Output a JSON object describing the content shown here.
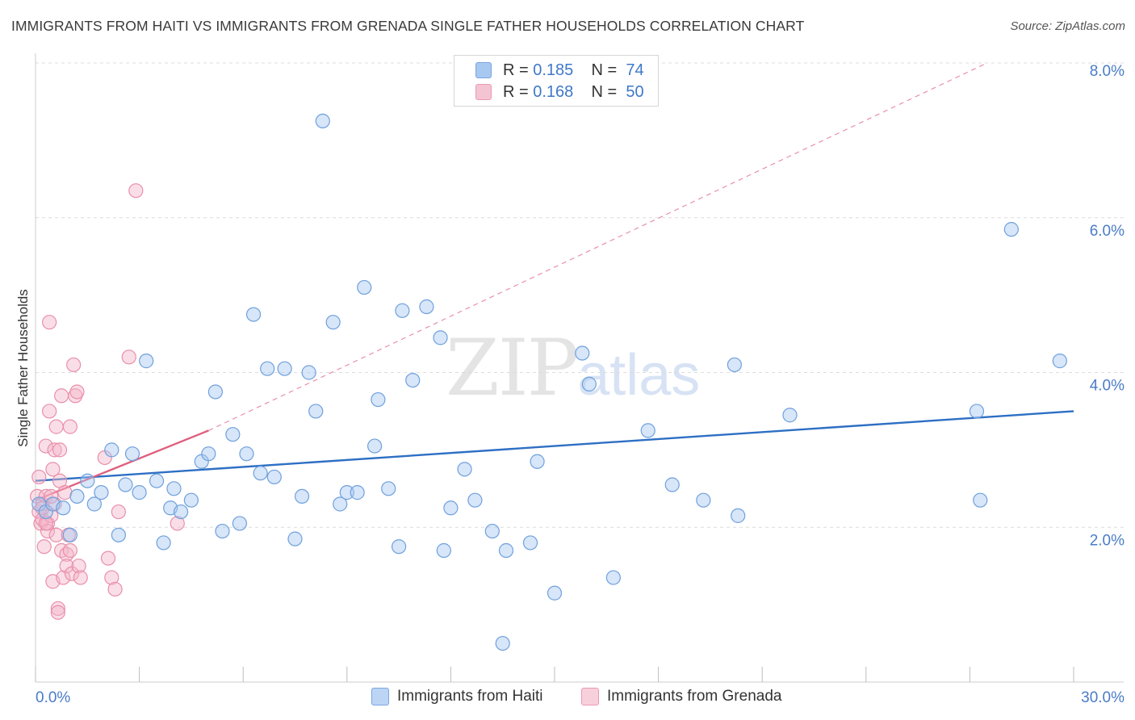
{
  "title": "IMMIGRANTS FROM HAITI VS IMMIGRANTS FROM GRENADA SINGLE FATHER HOUSEHOLDS CORRELATION CHART",
  "source": "Source: ZipAtlas.com",
  "watermark": {
    "zip": "ZIP",
    "atlas": "atlas"
  },
  "legend_top": {
    "rows": [
      {
        "r_label": "R =",
        "r_value": "0.185",
        "n_label": "N =",
        "n_value": "74",
        "color": "#a7c8f0"
      },
      {
        "r_label": "R =",
        "r_value": "0.168",
        "n_label": "N =",
        "n_value": "50",
        "color": "#f5b6c9"
      }
    ]
  },
  "legend_bottom": [
    {
      "label": "Immigrants from Haiti",
      "color": "#a7c8f0"
    },
    {
      "label": "Immigrants from Grenada",
      "color": "#f5b6c9"
    }
  ],
  "chart_data": {
    "type": "scatter",
    "title": "IMMIGRANTS FROM HAITI VS IMMIGRANTS FROM GRENADA SINGLE FATHER HOUSEHOLDS CORRELATION CHART",
    "xlabel": "",
    "ylabel": "Single Father Households",
    "xlim": [
      0,
      30
    ],
    "ylim": [
      0,
      8
    ],
    "x_tick_labels": [
      "0.0%",
      "30.0%"
    ],
    "y_ticks": [
      2,
      4,
      6,
      8
    ],
    "y_tick_labels": [
      "2.0%",
      "4.0%",
      "6.0%",
      "8.0%"
    ],
    "series": [
      {
        "name": "Immigrants from Haiti",
        "color": "#6fa0dd",
        "fill": "#a7c8f0",
        "trend": {
          "x": [
            0,
            30
          ],
          "y": [
            2.6,
            3.5
          ],
          "color": "#2d6fc4"
        },
        "points": [
          [
            0.1,
            2.3
          ],
          [
            0.3,
            2.2
          ],
          [
            0.5,
            2.3
          ],
          [
            0.8,
            2.25
          ],
          [
            1.0,
            1.9
          ],
          [
            1.2,
            2.4
          ],
          [
            1.5,
            2.6
          ],
          [
            1.7,
            2.3
          ],
          [
            1.9,
            2.45
          ],
          [
            2.2,
            3.0
          ],
          [
            2.4,
            1.9
          ],
          [
            2.6,
            2.55
          ],
          [
            2.8,
            2.95
          ],
          [
            3.0,
            2.45
          ],
          [
            3.2,
            4.15
          ],
          [
            3.5,
            2.6
          ],
          [
            3.7,
            1.8
          ],
          [
            3.9,
            2.25
          ],
          [
            4.0,
            2.5
          ],
          [
            4.2,
            2.2
          ],
          [
            4.5,
            2.35
          ],
          [
            4.8,
            2.85
          ],
          [
            5.0,
            2.95
          ],
          [
            5.2,
            3.75
          ],
          [
            5.4,
            1.95
          ],
          [
            5.7,
            3.2
          ],
          [
            5.9,
            2.05
          ],
          [
            6.1,
            2.95
          ],
          [
            6.3,
            4.75
          ],
          [
            6.5,
            2.7
          ],
          [
            6.7,
            4.05
          ],
          [
            6.9,
            2.65
          ],
          [
            7.2,
            4.05
          ],
          [
            7.5,
            1.85
          ],
          [
            7.7,
            2.4
          ],
          [
            7.9,
            4.0
          ],
          [
            8.1,
            3.5
          ],
          [
            8.3,
            7.25
          ],
          [
            8.6,
            4.65
          ],
          [
            8.8,
            2.3
          ],
          [
            9.0,
            2.45
          ],
          [
            9.3,
            2.45
          ],
          [
            9.5,
            5.1
          ],
          [
            9.8,
            3.05
          ],
          [
            9.9,
            3.65
          ],
          [
            10.2,
            2.5
          ],
          [
            10.5,
            1.75
          ],
          [
            10.6,
            4.8
          ],
          [
            10.9,
            3.9
          ],
          [
            11.3,
            4.85
          ],
          [
            11.7,
            4.45
          ],
          [
            11.8,
            1.7
          ],
          [
            12.0,
            2.25
          ],
          [
            12.4,
            2.75
          ],
          [
            12.7,
            2.35
          ],
          [
            13.2,
            1.95
          ],
          [
            13.5,
            0.5
          ],
          [
            13.6,
            1.7
          ],
          [
            14.3,
            1.8
          ],
          [
            14.5,
            2.85
          ],
          [
            15.0,
            1.15
          ],
          [
            15.8,
            4.25
          ],
          [
            16.0,
            3.85
          ],
          [
            16.7,
            1.35
          ],
          [
            17.7,
            3.25
          ],
          [
            18.4,
            2.55
          ],
          [
            19.3,
            2.35
          ],
          [
            20.2,
            4.1
          ],
          [
            20.3,
            2.15
          ],
          [
            21.8,
            3.45
          ],
          [
            27.2,
            3.5
          ],
          [
            27.3,
            2.35
          ],
          [
            28.2,
            5.85
          ],
          [
            29.6,
            4.15
          ]
        ]
      },
      {
        "name": "Immigrants from Grenada",
        "color": "#e98fab",
        "fill": "#f5b6c9",
        "trend": {
          "x": [
            0,
            5
          ],
          "y": [
            2.35,
            3.25
          ],
          "color": "#e0607e"
        },
        "trend_dashed": {
          "x": [
            5,
            27.5
          ],
          "y": [
            3.25,
            8.0
          ],
          "color": "#e98fab"
        },
        "points": [
          [
            0.05,
            2.4
          ],
          [
            0.1,
            2.65
          ],
          [
            0.1,
            2.2
          ],
          [
            0.15,
            2.05
          ],
          [
            0.2,
            2.3
          ],
          [
            0.2,
            2.1
          ],
          [
            0.25,
            1.75
          ],
          [
            0.3,
            3.05
          ],
          [
            0.3,
            2.4
          ],
          [
            0.35,
            2.05
          ],
          [
            0.35,
            1.95
          ],
          [
            0.4,
            3.5
          ],
          [
            0.4,
            4.65
          ],
          [
            0.45,
            2.15
          ],
          [
            0.5,
            2.75
          ],
          [
            0.5,
            1.3
          ],
          [
            0.55,
            3.0
          ],
          [
            0.55,
            2.3
          ],
          [
            0.6,
            3.3
          ],
          [
            0.6,
            1.9
          ],
          [
            0.65,
            0.95
          ],
          [
            0.65,
            0.9
          ],
          [
            0.7,
            3.0
          ],
          [
            0.7,
            2.6
          ],
          [
            0.75,
            3.7
          ],
          [
            0.75,
            1.7
          ],
          [
            0.8,
            1.35
          ],
          [
            0.85,
            2.45
          ],
          [
            0.9,
            1.65
          ],
          [
            0.9,
            1.5
          ],
          [
            0.95,
            1.9
          ],
          [
            1.0,
            3.3
          ],
          [
            1.0,
            1.7
          ],
          [
            1.05,
            1.4
          ],
          [
            1.1,
            4.1
          ],
          [
            1.15,
            3.7
          ],
          [
            1.2,
            3.75
          ],
          [
            1.25,
            1.5
          ],
          [
            1.3,
            1.35
          ],
          [
            2.0,
            2.9
          ],
          [
            2.1,
            1.6
          ],
          [
            2.2,
            1.35
          ],
          [
            2.3,
            1.2
          ],
          [
            2.4,
            2.2
          ],
          [
            2.7,
            4.2
          ],
          [
            2.9,
            6.35
          ],
          [
            4.1,
            2.05
          ],
          [
            0.2,
            2.25
          ],
          [
            0.3,
            2.05
          ],
          [
            0.45,
            2.4
          ]
        ]
      }
    ]
  }
}
